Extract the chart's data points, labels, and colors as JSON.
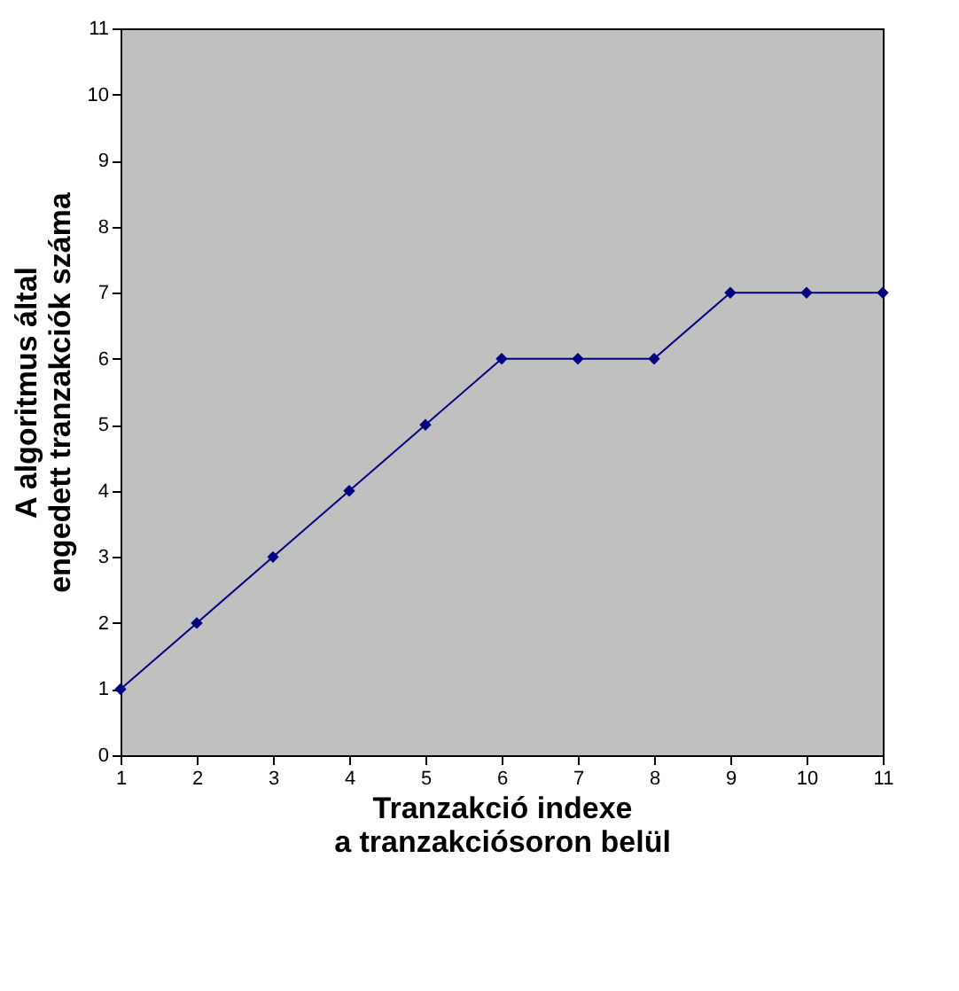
{
  "chart_data": {
    "type": "line",
    "xlabel": "Tranzakció indexe\na tranzakciósoron belül",
    "ylabel": "A  algoritmus által\nengedett tranzakciók száma",
    "x": [
      1,
      2,
      3,
      4,
      5,
      6,
      7,
      8,
      9,
      10,
      11
    ],
    "series": [
      {
        "color": "#000080",
        "values": [
          1,
          2,
          3,
          4,
          5,
          6,
          6,
          6,
          7,
          7,
          7
        ]
      }
    ],
    "xlim": [
      1,
      11
    ],
    "xticks": [
      1,
      2,
      3,
      4,
      5,
      6,
      7,
      8,
      9,
      10,
      11
    ],
    "ylim": [
      0,
      11
    ],
    "yticks": [
      0,
      1,
      2,
      3,
      4,
      5,
      6,
      7,
      8,
      9,
      10,
      11
    ],
    "grid": false,
    "legend": false,
    "marker": "diamond",
    "line_style": "solid"
  }
}
